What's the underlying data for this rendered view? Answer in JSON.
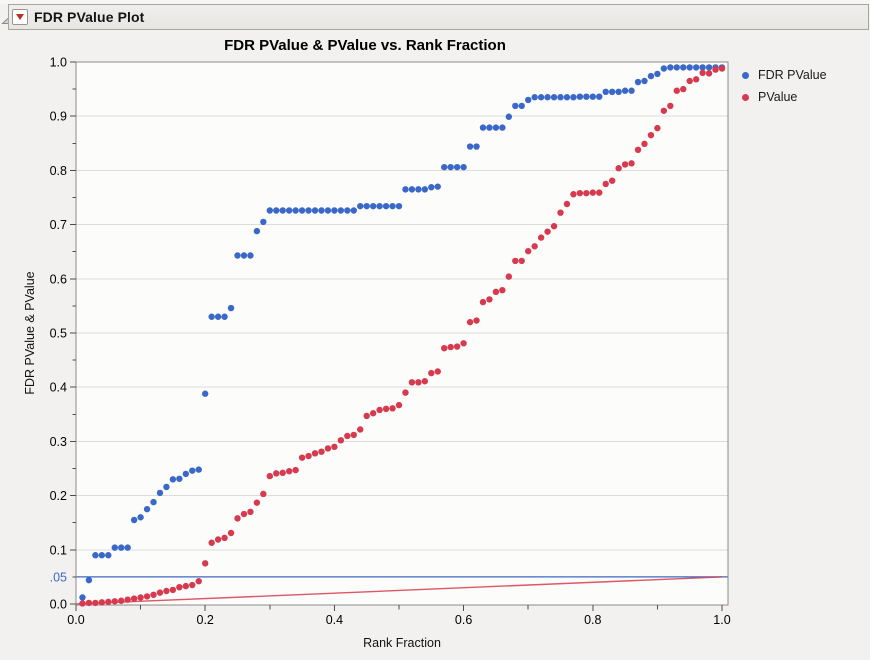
{
  "header": {
    "title": "FDR PValue Plot",
    "disclosure_icon": "outline-open-triangle",
    "menu_icon": "red-triangle-menu"
  },
  "chart_data": {
    "type": "scatter",
    "title": "FDR PValue & PValue vs. Rank Fraction",
    "xlabel": "Rank Fraction",
    "ylabel": "FDR PValue & PValue",
    "xlim": [
      0,
      1
    ],
    "ylim": [
      0,
      1
    ],
    "grid": "horizontal-only",
    "legend_position": "right",
    "x_major_ticks": {
      "values": [
        0,
        0.2,
        0.4,
        0.6,
        0.8,
        1.0
      ],
      "labels": [
        "0.0",
        "0.2",
        "0.4",
        "0.6",
        "0.8",
        "1.0"
      ]
    },
    "x_minor_ticks": [
      0.1,
      0.3,
      0.5,
      0.7,
      0.9
    ],
    "y_major_ticks": {
      "values": [
        0,
        0.1,
        0.2,
        0.3,
        0.4,
        0.5,
        0.6,
        0.7,
        0.8,
        0.9,
        1.0
      ],
      "labels": [
        "0.0",
        "0.1",
        "0.2",
        "0.3",
        "0.4",
        "0.5",
        "0.6",
        "0.7",
        "0.8",
        "0.9",
        "1.0"
      ]
    },
    "y_minor_ticks": [
      0.05,
      0.15,
      0.25,
      0.35,
      0.45,
      0.55,
      0.65,
      0.75,
      0.85,
      0.95
    ],
    "x": [
      0.01,
      0.02,
      0.03,
      0.04,
      0.05,
      0.06,
      0.07,
      0.08,
      0.09,
      0.1,
      0.11,
      0.12,
      0.13,
      0.14,
      0.15,
      0.16,
      0.17,
      0.18,
      0.19,
      0.2,
      0.21,
      0.22,
      0.23,
      0.24,
      0.25,
      0.26,
      0.27,
      0.28,
      0.29,
      0.3,
      0.31,
      0.32,
      0.33,
      0.34,
      0.35,
      0.36,
      0.37,
      0.38,
      0.39,
      0.4,
      0.41,
      0.42,
      0.43,
      0.44,
      0.45,
      0.46,
      0.47,
      0.48,
      0.49,
      0.5,
      0.51,
      0.52,
      0.53,
      0.54,
      0.55,
      0.56,
      0.57,
      0.58,
      0.59,
      0.6,
      0.61,
      0.62,
      0.63,
      0.64,
      0.65,
      0.66,
      0.67,
      0.68,
      0.69,
      0.7,
      0.71,
      0.72,
      0.73,
      0.74,
      0.75,
      0.76,
      0.77,
      0.78,
      0.79,
      0.8,
      0.81,
      0.82,
      0.83,
      0.84,
      0.85,
      0.86,
      0.87,
      0.88,
      0.89,
      0.9,
      0.91,
      0.92,
      0.93,
      0.94,
      0.95,
      0.96,
      0.97,
      0.98,
      0.99,
      1.0
    ],
    "series": [
      {
        "name": "FDR PValue",
        "color": "#3A68C8",
        "y": [
          0.012,
          0.044,
          0.09,
          0.09,
          0.09,
          0.104,
          0.104,
          0.104,
          0.155,
          0.16,
          0.175,
          0.188,
          0.205,
          0.216,
          0.23,
          0.231,
          0.24,
          0.246,
          0.248,
          0.388,
          0.53,
          0.53,
          0.53,
          0.546,
          0.643,
          0.643,
          0.643,
          0.688,
          0.705,
          0.726,
          0.726,
          0.726,
          0.726,
          0.726,
          0.726,
          0.726,
          0.726,
          0.726,
          0.726,
          0.726,
          0.726,
          0.726,
          0.726,
          0.734,
          0.734,
          0.734,
          0.734,
          0.734,
          0.734,
          0.734,
          0.765,
          0.765,
          0.765,
          0.765,
          0.769,
          0.77,
          0.806,
          0.806,
          0.806,
          0.806,
          0.844,
          0.844,
          0.879,
          0.879,
          0.879,
          0.879,
          0.899,
          0.919,
          0.919,
          0.93,
          0.935,
          0.935,
          0.935,
          0.935,
          0.935,
          0.935,
          0.935,
          0.936,
          0.936,
          0.936,
          0.936,
          0.945,
          0.945,
          0.945,
          0.947,
          0.947,
          0.963,
          0.965,
          0.974,
          0.978,
          0.988,
          0.99,
          0.99,
          0.99,
          0.99,
          0.99,
          0.99,
          0.99,
          0.99,
          0.99
        ]
      },
      {
        "name": "PValue",
        "color": "#D73A4E",
        "y": [
          0.001,
          0.002,
          0.002,
          0.003,
          0.004,
          0.005,
          0.006,
          0.008,
          0.01,
          0.012,
          0.014,
          0.017,
          0.021,
          0.024,
          0.026,
          0.031,
          0.033,
          0.035,
          0.042,
          0.075,
          0.113,
          0.119,
          0.122,
          0.131,
          0.158,
          0.166,
          0.17,
          0.187,
          0.203,
          0.236,
          0.241,
          0.242,
          0.245,
          0.247,
          0.27,
          0.273,
          0.278,
          0.281,
          0.287,
          0.29,
          0.302,
          0.31,
          0.312,
          0.322,
          0.347,
          0.352,
          0.358,
          0.36,
          0.361,
          0.367,
          0.39,
          0.409,
          0.409,
          0.411,
          0.426,
          0.429,
          0.472,
          0.474,
          0.475,
          0.481,
          0.52,
          0.523,
          0.557,
          0.562,
          0.576,
          0.579,
          0.604,
          0.633,
          0.633,
          0.651,
          0.66,
          0.676,
          0.687,
          0.697,
          0.722,
          0.738,
          0.756,
          0.758,
          0.758,
          0.759,
          0.759,
          0.775,
          0.781,
          0.804,
          0.811,
          0.813,
          0.838,
          0.849,
          0.865,
          0.878,
          0.91,
          0.919,
          0.947,
          0.95,
          0.965,
          0.968,
          0.98,
          0.979,
          0.986,
          0.988
        ]
      }
    ],
    "ref_lines": [
      {
        "kind": "hline",
        "y": 0.05,
        "color": "#3A68C8",
        "axis_label": ".05"
      },
      {
        "kind": "segment",
        "x1": 0,
        "y1": 0,
        "x2": 1,
        "y2": 0.05,
        "color": "#D73A4E"
      }
    ]
  }
}
